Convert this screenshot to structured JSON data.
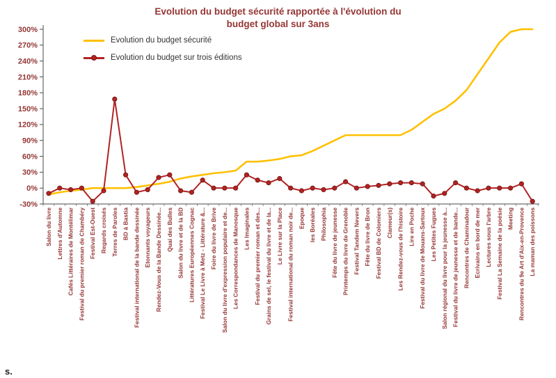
{
  "title": "Evolution du budget sécurité rapportée à l'évolution du budget global sur 3ans",
  "footer": {
    "text": "s."
  },
  "colors": {
    "title": "#943634",
    "axis_labels": "#943634",
    "axis_line": "#4a4a4a",
    "legend_text": "#333333",
    "background": "#ffffff"
  },
  "chart_data": {
    "type": "line",
    "title": "Evolution du budget sécurité rapportée à l'évolution du budget global sur 3ans",
    "xlabel": "",
    "ylabel": "",
    "ylim": [
      -30,
      300
    ],
    "ytick_step": 30,
    "yticks": [
      "-30%",
      "0%",
      "30%",
      "60%",
      "90%",
      "120%",
      "150%",
      "180%",
      "210%",
      "240%",
      "270%",
      "300%"
    ],
    "grid": false,
    "legend_position": "top-left-inside",
    "categories": [
      "Salon du livre",
      "Lettres d'Automne",
      "Cafés Littéraires de Montélimar",
      "Festival du premier roman de Chambéry",
      "Festival Est-Ouest",
      "Regards croisés",
      "Terres de Paroles",
      "BD à Bastia",
      "Festival international de la bande dessinée",
      "Etonnants voyageurs",
      "Rendez-Vous de la Bande Dessinée...",
      "Quai des Bulles",
      "Salon du livre et de la BD",
      "Littératures Européennes Cognac",
      "Festival Le Livre à Metz - Littérature &...",
      "Foire du livre de Brive",
      "Salon du livre d'expression populaire et de...",
      "Les Correspondances de Manosque",
      "Les Imaginales",
      "Festival du premier roman et des...",
      "Grains de sel, le festival du livre et de la...",
      "Le Livre sur la Place",
      "Festival international du roman noir de...",
      "Epoque",
      "les Boréales",
      "Philosophia",
      "Fête du livre de jeunesse",
      "Printemps du livre de Grenoble",
      "Festival Tandem Nevers",
      "Fête du livre de Bron",
      "Festival BD de Colomiers",
      "Clameur(s)",
      "Les Rendez-vous de l'histoire",
      "Lire en Poche",
      "Festival du livre de Mouans-Sartoux",
      "Les Petites Fugues",
      "Salon régional du livre pour la jeunesse à...",
      "Festival du livre de jeunesse et de bande...",
      "Rencontres de Chaminadour",
      "Ecrivains en bord de mer",
      "Lectures sous l'arbre",
      "Festival La Semaine de la poésie",
      "Meeting",
      "Rencontres du 9e Art d'Aix-en-Provence",
      "La maman des poissons"
    ],
    "series": [
      {
        "name": "Evolution du budget sécurité",
        "color": "#FFC000",
        "marker": "none",
        "values": [
          -12,
          -8,
          -5,
          -3,
          0,
          0,
          0,
          0,
          2,
          5,
          8,
          12,
          18,
          22,
          25,
          28,
          30,
          33,
          50,
          50,
          52,
          55,
          60,
          62,
          70,
          80,
          90,
          100,
          100,
          100,
          100,
          100,
          100,
          110,
          125,
          140,
          150,
          165,
          185,
          215,
          245,
          275,
          295,
          300,
          300
        ]
      },
      {
        "name": "Evolution du budget sur trois éditions",
        "color": "#B22222",
        "marker": "circle",
        "marker_stroke": "#7A1B1B",
        "values": [
          -10,
          0,
          -3,
          0,
          -25,
          -5,
          168,
          25,
          -8,
          -3,
          20,
          25,
          -5,
          -8,
          15,
          0,
          0,
          0,
          25,
          15,
          10,
          18,
          0,
          -5,
          0,
          -3,
          0,
          12,
          0,
          3,
          5,
          8,
          10,
          10,
          8,
          -15,
          -10,
          10,
          0,
          -5,
          0,
          0,
          0,
          8,
          -25
        ]
      }
    ]
  }
}
